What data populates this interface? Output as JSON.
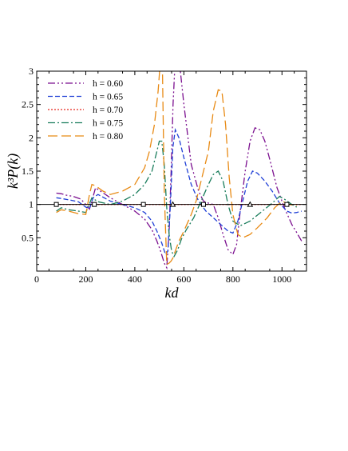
{
  "chart_data": {
    "type": "line",
    "xlabel": "kd",
    "ylabel": "k³P(k)",
    "xlim": [
      0,
      1100
    ],
    "ylim": [
      0,
      3
    ],
    "x_ticks": [
      "0",
      "200",
      "400",
      "600",
      "800",
      "1000"
    ],
    "y_ticks": [
      "0.5",
      "1",
      "1.5",
      "2",
      "2.5",
      "3"
    ],
    "reference_line_y": 1,
    "legend_position": "top-left",
    "grid": false,
    "series": [
      {
        "name": "h = 0.60",
        "color": "#7b0f8f",
        "dash": "dash-dot-dot",
        "x": [
          80,
          100,
          120,
          150,
          180,
          200,
          215,
          225,
          240,
          260,
          300,
          350,
          400,
          440,
          470,
          490,
          505,
          520,
          530,
          540,
          548,
          556,
          565,
          580,
          600,
          630,
          660,
          680,
          700,
          720,
          740,
          760,
          780,
          800,
          815,
          830,
          850,
          870,
          890,
          910,
          930,
          950,
          980,
          1010,
          1040,
          1060,
          1080
        ],
        "y": [
          1.17,
          1.16,
          1.14,
          1.12,
          1.08,
          1.0,
          0.93,
          1.05,
          1.25,
          1.2,
          1.1,
          1.0,
          0.9,
          0.78,
          0.62,
          0.45,
          0.3,
          0.12,
          0.05,
          0.6,
          1.5,
          2.5,
          3.2,
          3.2,
          2.5,
          1.6,
          1.2,
          1.05,
          1.02,
          1.0,
          0.8,
          0.55,
          0.32,
          0.25,
          0.4,
          0.9,
          1.5,
          1.95,
          2.15,
          2.12,
          1.95,
          1.68,
          1.25,
          0.95,
          0.7,
          0.58,
          0.45
        ]
      },
      {
        "name": "h = 0.65",
        "color": "#1f3fd6",
        "dash": "dash",
        "x": [
          80,
          100,
          130,
          170,
          200,
          215,
          230,
          250,
          300,
          350,
          400,
          440,
          470,
          490,
          510,
          525,
          535,
          545,
          555,
          565,
          580,
          600,
          630,
          660,
          690,
          720,
          750,
          780,
          800,
          820,
          840,
          860,
          880,
          900,
          930,
          960,
          990,
          1020,
          1040,
          1060,
          1080
        ],
        "y": [
          1.1,
          1.09,
          1.07,
          1.04,
          0.96,
          0.94,
          1.1,
          1.15,
          1.05,
          1.0,
          0.95,
          0.88,
          0.75,
          0.6,
          0.42,
          0.25,
          0.3,
          1.0,
          1.85,
          2.12,
          2.0,
          1.7,
          1.3,
          1.05,
          0.9,
          0.8,
          0.7,
          0.6,
          0.57,
          0.75,
          1.05,
          1.35,
          1.5,
          1.47,
          1.35,
          1.2,
          1.02,
          0.9,
          0.87,
          0.88,
          0.9
        ]
      },
      {
        "name": "h = 0.70",
        "color": "#e8281e",
        "dash": "dot",
        "x": [
          80,
          1080
        ],
        "y": [
          1.0,
          1.0
        ]
      },
      {
        "name": "h = 0.75",
        "color": "#1a7d5c",
        "dash": "dash-dot",
        "x": [
          80,
          100,
          130,
          170,
          200,
          212,
          225,
          250,
          300,
          350,
          400,
          440,
          470,
          490,
          500,
          510,
          520,
          530,
          540,
          550,
          560,
          575,
          590,
          610,
          640,
          670,
          700,
          720,
          740,
          760,
          780,
          800,
          830,
          870,
          920,
          960,
          990,
          1010,
          1040,
          1060
        ],
        "y": [
          0.9,
          0.95,
          0.92,
          0.9,
          0.88,
          0.98,
          1.1,
          1.04,
          1.0,
          1.05,
          1.15,
          1.3,
          1.5,
          1.8,
          1.95,
          1.95,
          1.6,
          0.95,
          0.55,
          0.3,
          0.22,
          0.32,
          0.48,
          0.62,
          0.8,
          1.05,
          1.3,
          1.45,
          1.5,
          1.35,
          1.0,
          0.75,
          0.68,
          0.75,
          0.9,
          1.02,
          1.12,
          1.08,
          1.0,
          0.96
        ]
      },
      {
        "name": "h = 0.80",
        "color": "#e88a14",
        "dash": "long-dash",
        "x": [
          80,
          100,
          130,
          170,
          200,
          215,
          225,
          240,
          270,
          300,
          350,
          400,
          440,
          460,
          480,
          495,
          505,
          512,
          520,
          530,
          540,
          548,
          556,
          565,
          580,
          600,
          630,
          650,
          670,
          700,
          720,
          740,
          755,
          770,
          785,
          800,
          820,
          840,
          870,
          900,
          940,
          970,
          1000,
          1030,
          1060
        ],
        "y": [
          0.88,
          0.92,
          0.9,
          0.86,
          0.85,
          1.15,
          1.3,
          1.28,
          1.2,
          1.15,
          1.2,
          1.3,
          1.55,
          1.8,
          2.2,
          2.7,
          3.2,
          3.2,
          1.2,
          0.1,
          0.12,
          0.15,
          0.2,
          0.3,
          0.45,
          0.6,
          0.85,
          1.05,
          1.35,
          1.8,
          2.4,
          2.72,
          2.7,
          2.2,
          1.4,
          0.85,
          0.55,
          0.5,
          0.55,
          0.65,
          0.8,
          0.95,
          1.05,
          1.0,
          0.98
        ]
      }
    ],
    "markers": [
      {
        "shape": "square",
        "x": [
          80,
          235,
          435,
          680,
          1020
        ],
        "y": [
          1,
          1,
          1,
          1,
          1
        ]
      },
      {
        "shape": "triangle",
        "x": [
          555,
          870
        ],
        "y": [
          1,
          1
        ]
      }
    ]
  }
}
